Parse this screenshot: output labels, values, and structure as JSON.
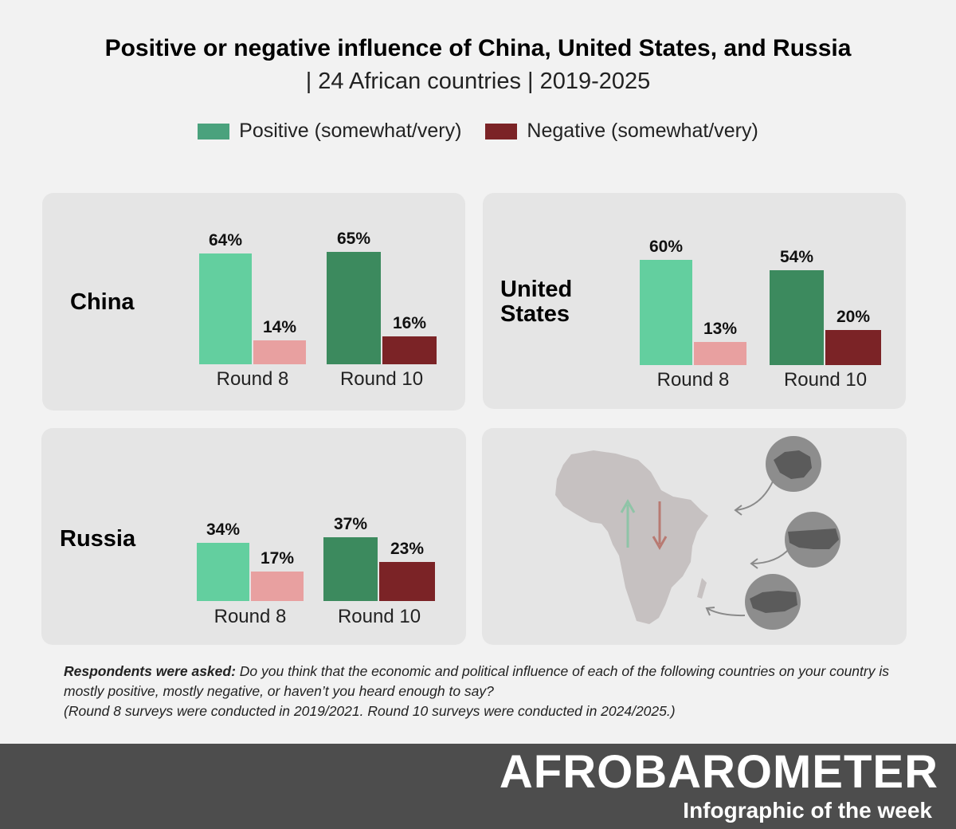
{
  "header": {
    "title": "Positive or negative influence of China, United States, and Russia",
    "subtitle": "| 24 African countries | 2019-2025"
  },
  "legend": [
    {
      "label": "Positive (somewhat/very)",
      "color": "#4aa27d"
    },
    {
      "label": "Negative (somewhat/very)",
      "color": "#7b2326"
    }
  ],
  "colors": {
    "round8_positive": "#63cf9f",
    "round8_negative": "#e8a0a0",
    "round10_positive": "#3c8a5e",
    "round10_negative": "#7b2326",
    "panel_bg": "#e5e5e5",
    "footer_bg": "#4d4d4d"
  },
  "chart_data": {
    "type": "bar",
    "title": "Positive or negative influence of China, United States, and Russia",
    "unit": "%",
    "categories": [
      "Round 8",
      "Round 10"
    ],
    "panels": [
      {
        "country": "China",
        "groups": [
          {
            "round": "Round 8",
            "positive": 64,
            "negative": 14,
            "positive_label": "64%",
            "negative_label": "14%"
          },
          {
            "round": "Round 10",
            "positive": 65,
            "negative": 16,
            "positive_label": "65%",
            "negative_label": "16%"
          }
        ]
      },
      {
        "country": "United States",
        "groups": [
          {
            "round": "Round 8",
            "positive": 60,
            "negative": 13,
            "positive_label": "60%",
            "negative_label": "13%"
          },
          {
            "round": "Round 10",
            "positive": 54,
            "negative": 20,
            "positive_label": "54%",
            "negative_label": "20%"
          }
        ]
      },
      {
        "country": "Russia",
        "groups": [
          {
            "round": "Round 8",
            "positive": 34,
            "negative": 17,
            "positive_label": "34%",
            "negative_label": "17%"
          },
          {
            "round": "Round 10",
            "positive": 37,
            "negative": 23,
            "positive_label": "37%",
            "negative_label": "23%"
          }
        ]
      }
    ]
  },
  "note": {
    "lead": "Respondents were asked:",
    "question": "Do you think that the economic and political influence of each of the following countries on your country is mostly positive, mostly negative, or haven’t you heard enough to say?",
    "rounds": "(Round 8 surveys were conducted in 2019/2021. Round 10 surveys were conducted in 2024/2025.)"
  },
  "footer": {
    "brand": "AFROBAROMETER",
    "tagline": "Infographic of the week"
  }
}
